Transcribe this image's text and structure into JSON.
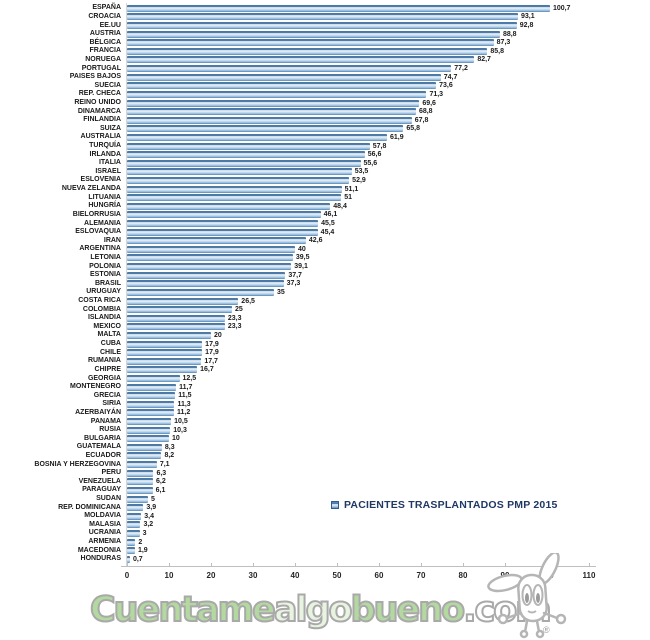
{
  "legend": {
    "label": "PACIENTES TRASPLANTADOS PMP 2015",
    "marker_color": "#4f81bd",
    "text_color": "#1f3864"
  },
  "chart_data": {
    "type": "bar",
    "orientation": "horizontal",
    "title": "",
    "xlabel": "",
    "ylabel": "",
    "xlim": [
      0,
      110
    ],
    "x_ticks": [
      0,
      10,
      20,
      30,
      40,
      50,
      60,
      70,
      80,
      90,
      100,
      110
    ],
    "grid": false,
    "legend_position": "center-right",
    "bar_color": "#5b9bd5",
    "categories": [
      "ESPAÑA",
      "CROACIA",
      "EE.UU",
      "AUSTRIA",
      "BÉLGICA",
      "FRANCIA",
      "NORUEGA",
      "PORTUGAL",
      "PAISES BAJOS",
      "SUECIA",
      "REP. CHECA",
      "REINO UNIDO",
      "DINAMARCA",
      "FINLANDIA",
      "SUIZA",
      "AUSTRALIA",
      "TURQUÍA",
      "IRLANDA",
      "ITALIA",
      "ISRAEL",
      "ESLOVENIA",
      "NUEVA ZELANDA",
      "LITUANIA",
      "HUNGRÍA",
      "BIELORRUSIA",
      "ALEMANIA",
      "ESLOVAQUIA",
      "IRAN",
      "ARGENTINA",
      "LETONIA",
      "POLONIA",
      "ESTONIA",
      "BRASIL",
      "URUGUAY",
      "COSTA RICA",
      "COLOMBIA",
      "ISLANDIA",
      "MEXICO",
      "MALTA",
      "CUBA",
      "CHILE",
      "RUMANIA",
      "CHIPRE",
      "GEORGIA",
      "MONTENEGRO",
      "GRECIA",
      "SIRIA",
      "AZERBAIYÁN",
      "PANAMA",
      "RUSIA",
      "BULGARIA",
      "GUATEMALA",
      "ECUADOR",
      "BOSNIA Y HERZEGOVINA",
      "PERU",
      "VENEZUELA",
      "PARAGUAY",
      "SUDAN",
      "REP. DOMINICANA",
      "MOLDAVIA",
      "MALASIA",
      "UCRANIA",
      "ARMENIA",
      "MACEDONIA",
      "HONDURAS"
    ],
    "values": [
      100.7,
      93.1,
      92.8,
      88.8,
      87.3,
      85.8,
      82.7,
      77.2,
      74.7,
      73.6,
      71.3,
      69.6,
      68.8,
      67.8,
      65.8,
      61.9,
      57.8,
      56.6,
      55.6,
      53.5,
      52.9,
      51.1,
      51,
      48.4,
      46.1,
      45.5,
      45.4,
      42.6,
      40,
      39.5,
      39.1,
      37.7,
      37.3,
      35,
      26.5,
      25,
      23.3,
      23.3,
      20,
      17.9,
      17.9,
      17.7,
      16.7,
      12.5,
      11.7,
      11.5,
      11.3,
      11.2,
      10.5,
      10.3,
      10,
      8.3,
      8.2,
      7.1,
      6.3,
      6.2,
      6.1,
      5,
      3.9,
      3.4,
      3.2,
      3,
      2,
      1.9,
      0.7
    ],
    "value_labels": [
      "100,7",
      "93,1",
      "92,8",
      "88,8",
      "87,3",
      "85,8",
      "82,7",
      "77,2",
      "74,7",
      "73,6",
      "71,3",
      "69,6",
      "68,8",
      "67,8",
      "65,8",
      "61,9",
      "57,8",
      "56,6",
      "55,6",
      "53,5",
      "52,9",
      "51,1",
      "51",
      "48,4",
      "46,1",
      "45,5",
      "45,4",
      "42,6",
      "40",
      "39,5",
      "39,1",
      "37,7",
      "37,3",
      "35",
      "26,5",
      "25",
      "23,3",
      "23,3",
      "20",
      "17,9",
      "17,9",
      "17,7",
      "16,7",
      "12,5",
      "11,7",
      "11,5",
      "11,3",
      "11,2",
      "10,5",
      "10,3",
      "10",
      "8,3",
      "8,2",
      "7,1",
      "6,3",
      "6,2",
      "6,1",
      "5",
      "3,9",
      "3,4",
      "3,2",
      "3",
      "2",
      "1,9",
      "0,7"
    ]
  },
  "watermark": {
    "parts": [
      {
        "text": "Cuentame",
        "color": "#b3d9a1"
      },
      {
        "text": "algo",
        "color": "#e8f4e0"
      },
      {
        "text": "bueno",
        "color": "#b3d9a1"
      },
      {
        "text": ".com",
        "color": "#ffffff"
      }
    ],
    "registered_mark": "®",
    "mascot": "rabbit"
  }
}
